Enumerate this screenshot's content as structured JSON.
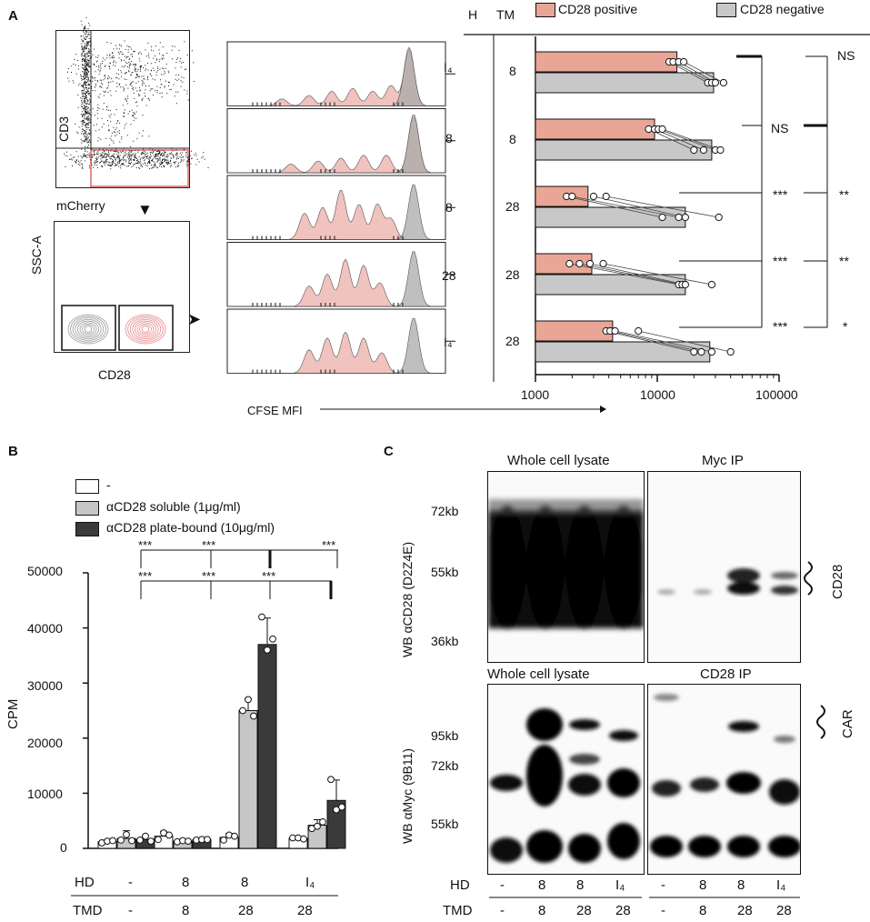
{
  "panels": {
    "a": "A",
    "b": "B",
    "c": "C"
  },
  "colors": {
    "pos": "#e9a595",
    "neg": "#c8c8c8",
    "pos_hist": "#efb8b3",
    "neg_hist": "#a9a9a9",
    "b_dash": "#ffffff",
    "b_soluble": "#c6c6c6",
    "b_plate": "#3a3a3a"
  },
  "panelA": {
    "flow": {
      "cd3": "CD3",
      "mcherry": "mCherry",
      "ssc": "SSC-A",
      "cd28": "CD28"
    },
    "hist_xlabel": "CFSE MFI",
    "hist_row_labels": [
      "I₄",
      "8",
      "8",
      "28",
      "I₄"
    ],
    "hist_row_names": [
      "hist-row-1",
      "hist-row-2",
      "hist-row-3",
      "hist-row-4",
      "hist-row-5"
    ],
    "headers": {
      "h": "H",
      "tm": "TM"
    },
    "tm_values": [
      "8",
      "8",
      "28",
      "28",
      "28"
    ],
    "sig_inner": [
      "NS",
      "***",
      "***",
      "***"
    ],
    "sig_outer": [
      "NS",
      "**",
      "**",
      "*"
    ]
  },
  "chart_data": [
    {
      "type": "bar",
      "orientation": "horizontal",
      "xscale": "log",
      "xlim": [
        1000,
        100000
      ],
      "xticks": [
        "1000",
        "10000",
        "100000"
      ],
      "legend": [
        "CD28 positive",
        "CD28 negative"
      ],
      "categories": [
        "H I4 / TM 8",
        "H 8 / TM 8",
        "H 8 / TM 28",
        "H 28 / TM 28",
        "H I4 / TM 28"
      ],
      "series": [
        {
          "name": "CD28 positive",
          "values": [
            14500,
            9500,
            2700,
            2900,
            4300
          ]
        },
        {
          "name": "CD28 negative",
          "values": [
            29000,
            28000,
            17000,
            17000,
            27000
          ]
        }
      ],
      "points_pos": [
        [
          12500,
          13500,
          15000,
          16500
        ],
        [
          8500,
          9500,
          10200,
          11000
        ],
        [
          1800,
          2000,
          3000,
          3800
        ],
        [
          1900,
          2300,
          2800,
          3600
        ],
        [
          3800,
          4100,
          4500,
          7000
        ]
      ],
      "points_neg": [
        [
          26000,
          28000,
          30000,
          35000
        ],
        [
          20000,
          24000,
          30000,
          33000
        ],
        [
          11000,
          15000,
          17000,
          32000
        ],
        [
          15000,
          16000,
          17000,
          28000
        ],
        [
          20000,
          23000,
          28000,
          40000
        ]
      ]
    },
    {
      "type": "bar",
      "ylabel": "CPM",
      "ylim": [
        0,
        50000
      ],
      "yticks": [
        "0",
        "10000",
        "20000",
        "30000",
        "40000",
        "50000"
      ],
      "legend": [
        "-",
        "αCD28 soluble (1μg/ml)",
        "αCD28 plate-bound (10μg/ml)"
      ],
      "groups_hd": [
        "-",
        "8",
        "8",
        "I₄"
      ],
      "groups_tmd": [
        "-",
        "8",
        "28",
        "28"
      ],
      "series": [
        {
          "name": "-",
          "values": [
            1200,
            2200,
            2000,
            1800
          ],
          "errors": [
            300,
            900,
            700,
            200
          ]
        },
        {
          "name": "αCD28 soluble (1μg/ml)",
          "values": [
            1800,
            1300,
            25000,
            4200
          ],
          "errors": [
            1400,
            300,
            2200,
            1000
          ]
        },
        {
          "name": "αCD28 plate-bound (10μg/ml)",
          "values": [
            1600,
            1600,
            37000,
            8700
          ],
          "errors": [
            700,
            300,
            4800,
            3700
          ]
        }
      ],
      "points": [
        [
          [
            1000,
            1300,
            1400
          ],
          [
            1600,
            2800,
            2400
          ],
          [
            1500,
            2400,
            2200
          ],
          [
            1900,
            1900,
            1700
          ]
        ],
        [
          [
            1500,
            2500,
            1400
          ],
          [
            1200,
            1400,
            1300
          ],
          [
            25000,
            27000,
            24000
          ],
          [
            3600,
            4000,
            4800
          ]
        ],
        [
          [
            1500,
            2200,
            1300
          ],
          [
            1500,
            1600,
            1600
          ],
          [
            42000,
            36000,
            38000
          ],
          [
            12500,
            7000,
            7500
          ]
        ]
      ],
      "sig_top": [
        "***",
        "***",
        "***"
      ],
      "sig_bottom": [
        "***",
        "***",
        "***"
      ],
      "row_labels": [
        "HD",
        "TMD"
      ]
    }
  ],
  "panelC": {
    "ylabel_top": "WB αCD28 (D2Z4E)",
    "ylabel_bottom": "WB αMyc (9B11)",
    "titles_top": [
      "Whole cell lysate",
      "Myc IP"
    ],
    "titles_bottom": [
      "Whole cell lysate",
      "CD28 IP"
    ],
    "markers_top": [
      "72kb",
      "55kb",
      "36kb"
    ],
    "markers_bottom": [
      "95kb",
      "72kb",
      "55kb"
    ],
    "side_top": "CD28",
    "side_bottom": "CAR",
    "row_labels": [
      "HD",
      "TMD"
    ],
    "hd": [
      "-",
      "8",
      "8",
      "I₄",
      "-",
      "8",
      "8",
      "I₄"
    ],
    "tmd": [
      "-",
      "8",
      "28",
      "28",
      "-",
      "8",
      "28",
      "28"
    ]
  }
}
